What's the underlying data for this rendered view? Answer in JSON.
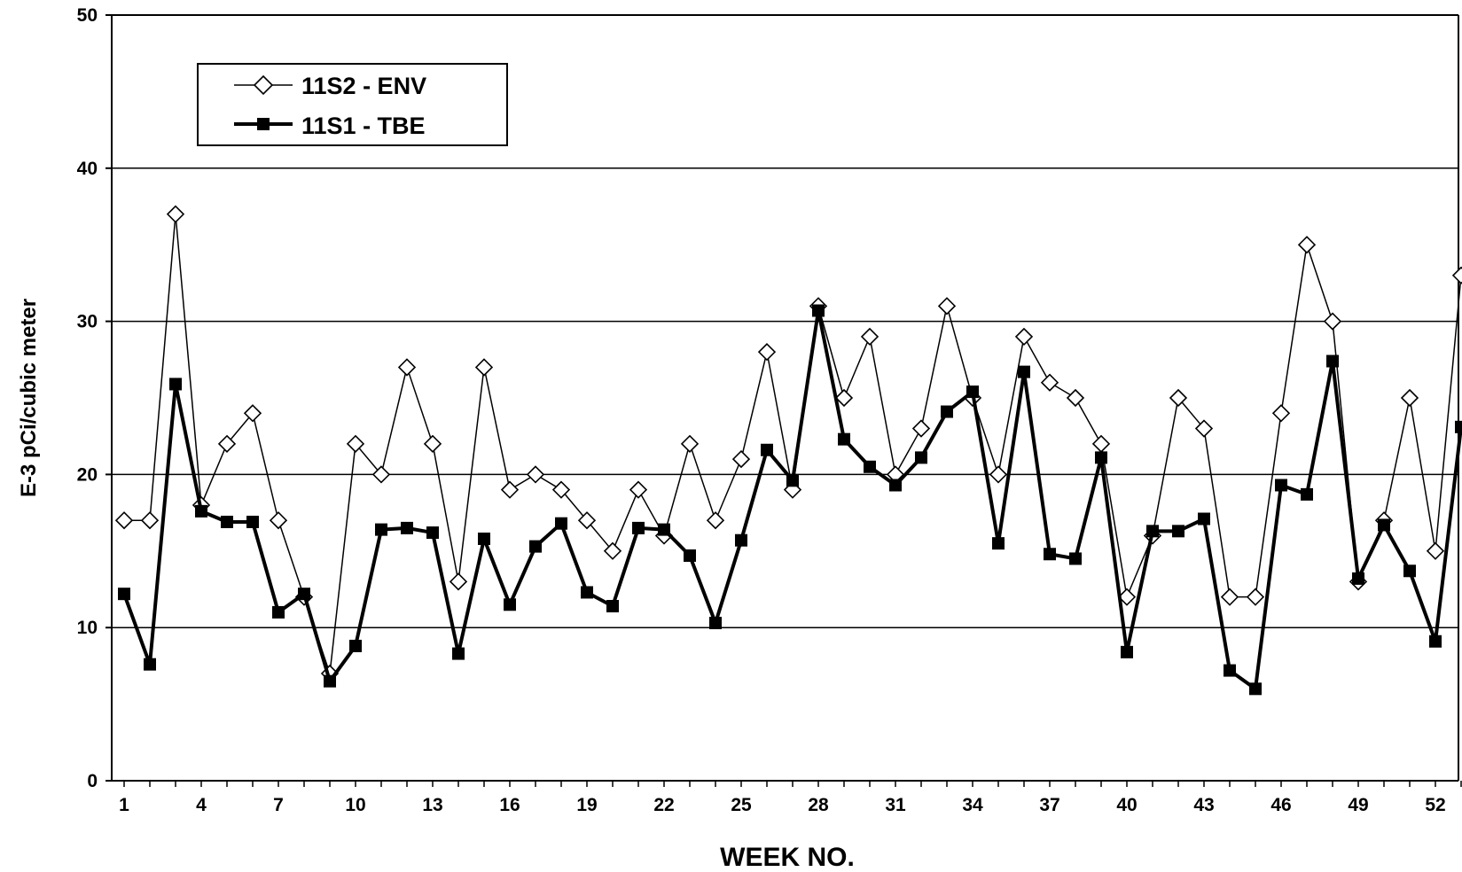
{
  "chart_data": {
    "type": "line",
    "xlabel": "WEEK NO.",
    "ylabel": "E-3 pCi/cubic meter",
    "ylim": [
      0,
      50
    ],
    "yticks": [
      "0",
      "10",
      "20",
      "30",
      "40",
      "50"
    ],
    "xlim": [
      1,
      53
    ],
    "xtick_labels": [
      "1",
      "4",
      "7",
      "10",
      "13",
      "16",
      "19",
      "22",
      "25",
      "28",
      "31",
      "34",
      "37",
      "40",
      "43",
      "46",
      "49",
      "52"
    ],
    "grid": "horizontal",
    "legend_position": "top-left",
    "x": [
      1,
      2,
      3,
      4,
      5,
      6,
      7,
      8,
      9,
      10,
      11,
      12,
      13,
      14,
      15,
      16,
      17,
      18,
      19,
      20,
      21,
      22,
      23,
      24,
      25,
      26,
      27,
      28,
      29,
      30,
      31,
      32,
      33,
      34,
      35,
      36,
      37,
      38,
      39,
      40,
      41,
      42,
      43,
      44,
      45,
      46,
      47,
      48,
      49,
      50,
      51,
      52,
      53
    ],
    "series": [
      {
        "name": "11S2 - ENV",
        "marker": "open-diamond",
        "values": [
          17,
          17,
          37,
          18,
          22,
          24,
          17,
          12,
          7,
          22,
          20,
          27,
          22,
          13,
          27,
          19,
          20,
          19,
          17,
          15,
          19,
          16,
          22,
          17,
          21,
          28,
          19,
          31,
          25,
          29,
          20,
          23,
          31,
          25,
          20,
          29,
          26,
          25,
          22,
          12,
          16,
          25,
          23,
          12,
          12,
          24,
          35,
          30,
          13,
          17,
          25,
          15,
          33
        ]
      },
      {
        "name": "11S1 - TBE",
        "marker": "filled-square",
        "values": [
          12.2,
          7.6,
          25.9,
          17.6,
          16.9,
          16.9,
          11,
          12.2,
          6.5,
          8.8,
          16.4,
          16.5,
          16.2,
          8.3,
          15.8,
          11.5,
          15.3,
          16.8,
          12.3,
          11.4,
          16.5,
          16.4,
          14.7,
          10.3,
          15.7,
          21.6,
          19.6,
          30.7,
          22.3,
          20.5,
          19.3,
          21.1,
          24.1,
          25.4,
          15.5,
          26.7,
          14.8,
          14.5,
          21.1,
          8.4,
          16.3,
          16.3,
          17.1,
          7.2,
          6,
          19.3,
          18.7,
          27.4,
          13.2,
          16.7,
          13.7,
          9.1,
          23.1
        ]
      }
    ]
  }
}
